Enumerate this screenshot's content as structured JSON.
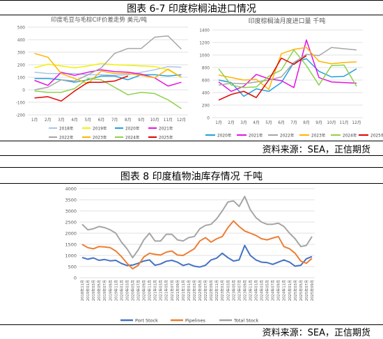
{
  "figure1": {
    "title": "图表 6-7   印度棕榈油进口情况",
    "source": "资料来源：SEA，正信期货"
  },
  "figure2": {
    "title": "图表 8   印度植物油库存情况    千吨",
    "source": "资料来源：SEA，正信期货"
  },
  "colors": {
    "y2018": "#a9c4e6",
    "y2019": "#f2f200",
    "y2020": "#21a0dc",
    "y2021": "#e312e3",
    "y2022": "#a6a6a6",
    "y2023": "#ffb400",
    "y2024": "#8ed14b",
    "y2025": "#e10000",
    "port": "#4472c4",
    "pipelines": "#ed7d31",
    "total": "#a5a5a5"
  },
  "chart_data": [
    {
      "type": "line",
      "title": "印度毛豆与毛棕CIF价差走势  美元/吨",
      "categories": [
        "1月",
        "2月",
        "3月",
        "4月",
        "5月",
        "6月",
        "7月",
        "8月",
        "9月",
        "10月",
        "11月",
        "12月"
      ],
      "ylim": [
        -200,
        500
      ],
      "yticks": [
        -200,
        -100,
        0,
        100,
        200,
        300,
        400,
        500
      ],
      "legend_position": "bottom",
      "grid": true,
      "series": [
        {
          "name": "2018年",
          "color_key": "y2018",
          "values": [
            140,
            130,
            130,
            130,
            120,
            120,
            115,
            120,
            140,
            160,
            185,
            180
          ]
        },
        {
          "name": "2019年",
          "color_key": "y2019",
          "values": [
            175,
            205,
            190,
            175,
            190,
            210,
            200,
            195,
            190,
            185,
            160,
            100
          ]
        },
        {
          "name": "2020年",
          "color_key": "y2020",
          "values": [
            90,
            90,
            80,
            60,
            80,
            110,
            110,
            80,
            120,
            120,
            110,
            120
          ]
        },
        {
          "name": "2021年",
          "color_key": "y2021",
          "values": [
            75,
            35,
            140,
            115,
            140,
            160,
            145,
            140,
            125,
            95,
            30,
            60
          ]
        },
        {
          "name": "2022年",
          "color_key": "y2022",
          "values": [
            0,
            20,
            80,
            70,
            120,
            175,
            290,
            330,
            330,
            420,
            430,
            325
          ]
        },
        {
          "name": "2023年",
          "color_key": "y2023",
          "values": [
            290,
            260,
            130,
            90,
            50,
            150,
            130,
            130,
            115,
            95,
            165,
            100
          ]
        },
        {
          "name": "2024年",
          "color_key": "y2024",
          "values": [
            -10,
            -20,
            -20,
            10,
            90,
            80,
            20,
            -40,
            -20,
            -30,
            -80,
            -150
          ]
        },
        {
          "name": "2025年",
          "color_key": "y2025",
          "values": [
            -65,
            -55,
            -90,
            -10,
            60,
            60,
            70,
            110,
            null,
            null,
            null,
            null
          ]
        }
      ]
    },
    {
      "type": "line",
      "title": "印度棕榈油月度进口量  千吨",
      "categories": [
        "1月",
        "2月",
        "3月",
        "4月",
        "5月",
        "6月",
        "7月",
        "8月",
        "9月",
        "10月",
        "11月",
        "12月"
      ],
      "ylim": [
        0,
        1400
      ],
      "yticks": [
        0,
        200,
        400,
        600,
        800,
        1000,
        1200,
        1400
      ],
      "legend_position": "bottom",
      "grid": true,
      "series": [
        {
          "name": "2020年",
          "color_key": "y2020",
          "values": [
            600,
            560,
            340,
            460,
            420,
            560,
            880,
            940,
            740,
            650,
            660,
            780
          ]
        },
        {
          "name": "2021年",
          "color_key": "y2021",
          "values": [
            570,
            420,
            500,
            690,
            620,
            590,
            480,
            1240,
            640,
            570,
            560,
            550
          ]
        },
        {
          "name": "2022年",
          "color_key": "y2022",
          "values": [
            520,
            550,
            540,
            570,
            600,
            650,
            880,
            1010,
            990,
            1120,
            1100,
            1080
          ]
        },
        {
          "name": "2023年",
          "color_key": "y2023",
          "values": [
            680,
            640,
            600,
            610,
            450,
            1020,
            1090,
            1120,
            900,
            860,
            880,
            890
          ]
        },
        {
          "name": "2024年",
          "color_key": "y2024",
          "values": [
            780,
            520,
            480,
            490,
            660,
            760,
            1080,
            830,
            520,
            830,
            840,
            500
          ]
        },
        {
          "name": "2025年",
          "color_key": "y2025",
          "values": [
            280,
            370,
            420,
            320,
            600,
            950,
            850,
            990,
            null,
            null,
            null,
            null
          ]
        }
      ]
    },
    {
      "type": "line",
      "ylim": [
        0,
        4000
      ],
      "yticks": [
        0,
        500,
        1000,
        1500,
        2000,
        2500,
        3000,
        3500,
        4000
      ],
      "grid": true,
      "legend_position": "bottom",
      "categories": [
        "2018年11月",
        "2019年01月",
        "2019年03月",
        "2019年05月",
        "2019年07月",
        "2019年09月",
        "2019年11月",
        "2020年01月",
        "2020年03月",
        "2020年05月",
        "2020年07月",
        "2020年09月",
        "2020年11月",
        "2021年01月",
        "2021年03月",
        "2021年05月",
        "2021年07月",
        "2021年09月",
        "2021年11月",
        "2022年01月",
        "2022年03月",
        "2022年05月",
        "2022年07月",
        "2022年09月",
        "2022年11月",
        "2023年01月",
        "2023年03月",
        "2023年05月",
        "2023年07月",
        "2023年09月",
        "2023年11月",
        "2024年01月",
        "2024年03月",
        "2024年05月",
        "2024年07月",
        "2024年09月",
        "2024年11月",
        "2025年01月",
        "2025年03月",
        "2025年05月",
        "2025年07月",
        "2025年09月"
      ],
      "series": [
        {
          "name": "Port Stock",
          "color_key": "port",
          "values": [
            910,
            830,
            890,
            780,
            820,
            760,
            780,
            640,
            550,
            570,
            650,
            750,
            800,
            560,
            620,
            740,
            780,
            700,
            550,
            620,
            520,
            480,
            560,
            800,
            880,
            1100,
            900,
            750,
            800,
            1450,
            1000,
            800,
            700,
            680,
            600,
            700,
            800,
            700,
            520,
            560,
            850,
            950
          ]
        },
        {
          "name": "Pipelines",
          "color_key": "pipelines",
          "values": [
            1500,
            1350,
            1300,
            1400,
            1380,
            1350,
            1200,
            950,
            650,
            400,
            560,
            930,
            1100,
            1050,
            1020,
            1150,
            1200,
            1020,
            1000,
            1150,
            1300,
            1650,
            1800,
            1600,
            1750,
            1850,
            2250,
            2550,
            2300,
            2100,
            2000,
            1900,
            1750,
            1700,
            1780,
            1850,
            1400,
            1300,
            1100,
            750,
            650,
            870
          ]
        },
        {
          "name": "Total Stock",
          "color_key": "total",
          "values": [
            2400,
            2150,
            2200,
            2300,
            2250,
            2150,
            2000,
            1600,
            1300,
            900,
            1250,
            1700,
            2000,
            1650,
            1650,
            1950,
            1950,
            1700,
            1650,
            1800,
            1850,
            2200,
            2350,
            2400,
            2650,
            3000,
            3400,
            3450,
            3200,
            3650,
            3050,
            2700,
            2500,
            2400,
            2400,
            2450,
            2300,
            2000,
            1750,
            1400,
            1450,
            1850
          ]
        }
      ]
    }
  ]
}
